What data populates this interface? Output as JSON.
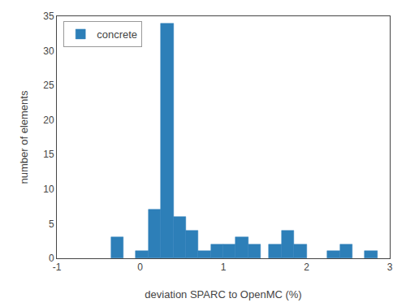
{
  "chart_data": {
    "type": "bar",
    "xlabel": "deviation SPARC to OpenMC (%)",
    "ylabel": "number of elements",
    "x": [
      -0.35,
      -0.05,
      0.1,
      0.25,
      0.4,
      0.55,
      0.7,
      0.85,
      1.0,
      1.15,
      1.3,
      1.55,
      1.7,
      1.85,
      2.25,
      2.4,
      2.7
    ],
    "widths": [
      0.15,
      0.15,
      0.15,
      0.15,
      0.15,
      0.15,
      0.15,
      0.15,
      0.15,
      0.15,
      0.15,
      0.15,
      0.15,
      0.15,
      0.15,
      0.15,
      0.15
    ],
    "series": [
      {
        "name": "concrete",
        "color": "#2d7fb8",
        "values": [
          3,
          1,
          7,
          34,
          6,
          4,
          1,
          2,
          2,
          3,
          2,
          2,
          4,
          2,
          1,
          2,
          1
        ]
      }
    ],
    "xlim": [
      -1,
      3
    ],
    "xticks": [
      -1,
      0,
      1,
      2,
      3
    ],
    "ylim": [
      0,
      35
    ],
    "yticks": [
      0,
      5,
      10,
      15,
      20,
      25,
      30,
      35
    ],
    "grid": false,
    "legend": "upper left"
  }
}
